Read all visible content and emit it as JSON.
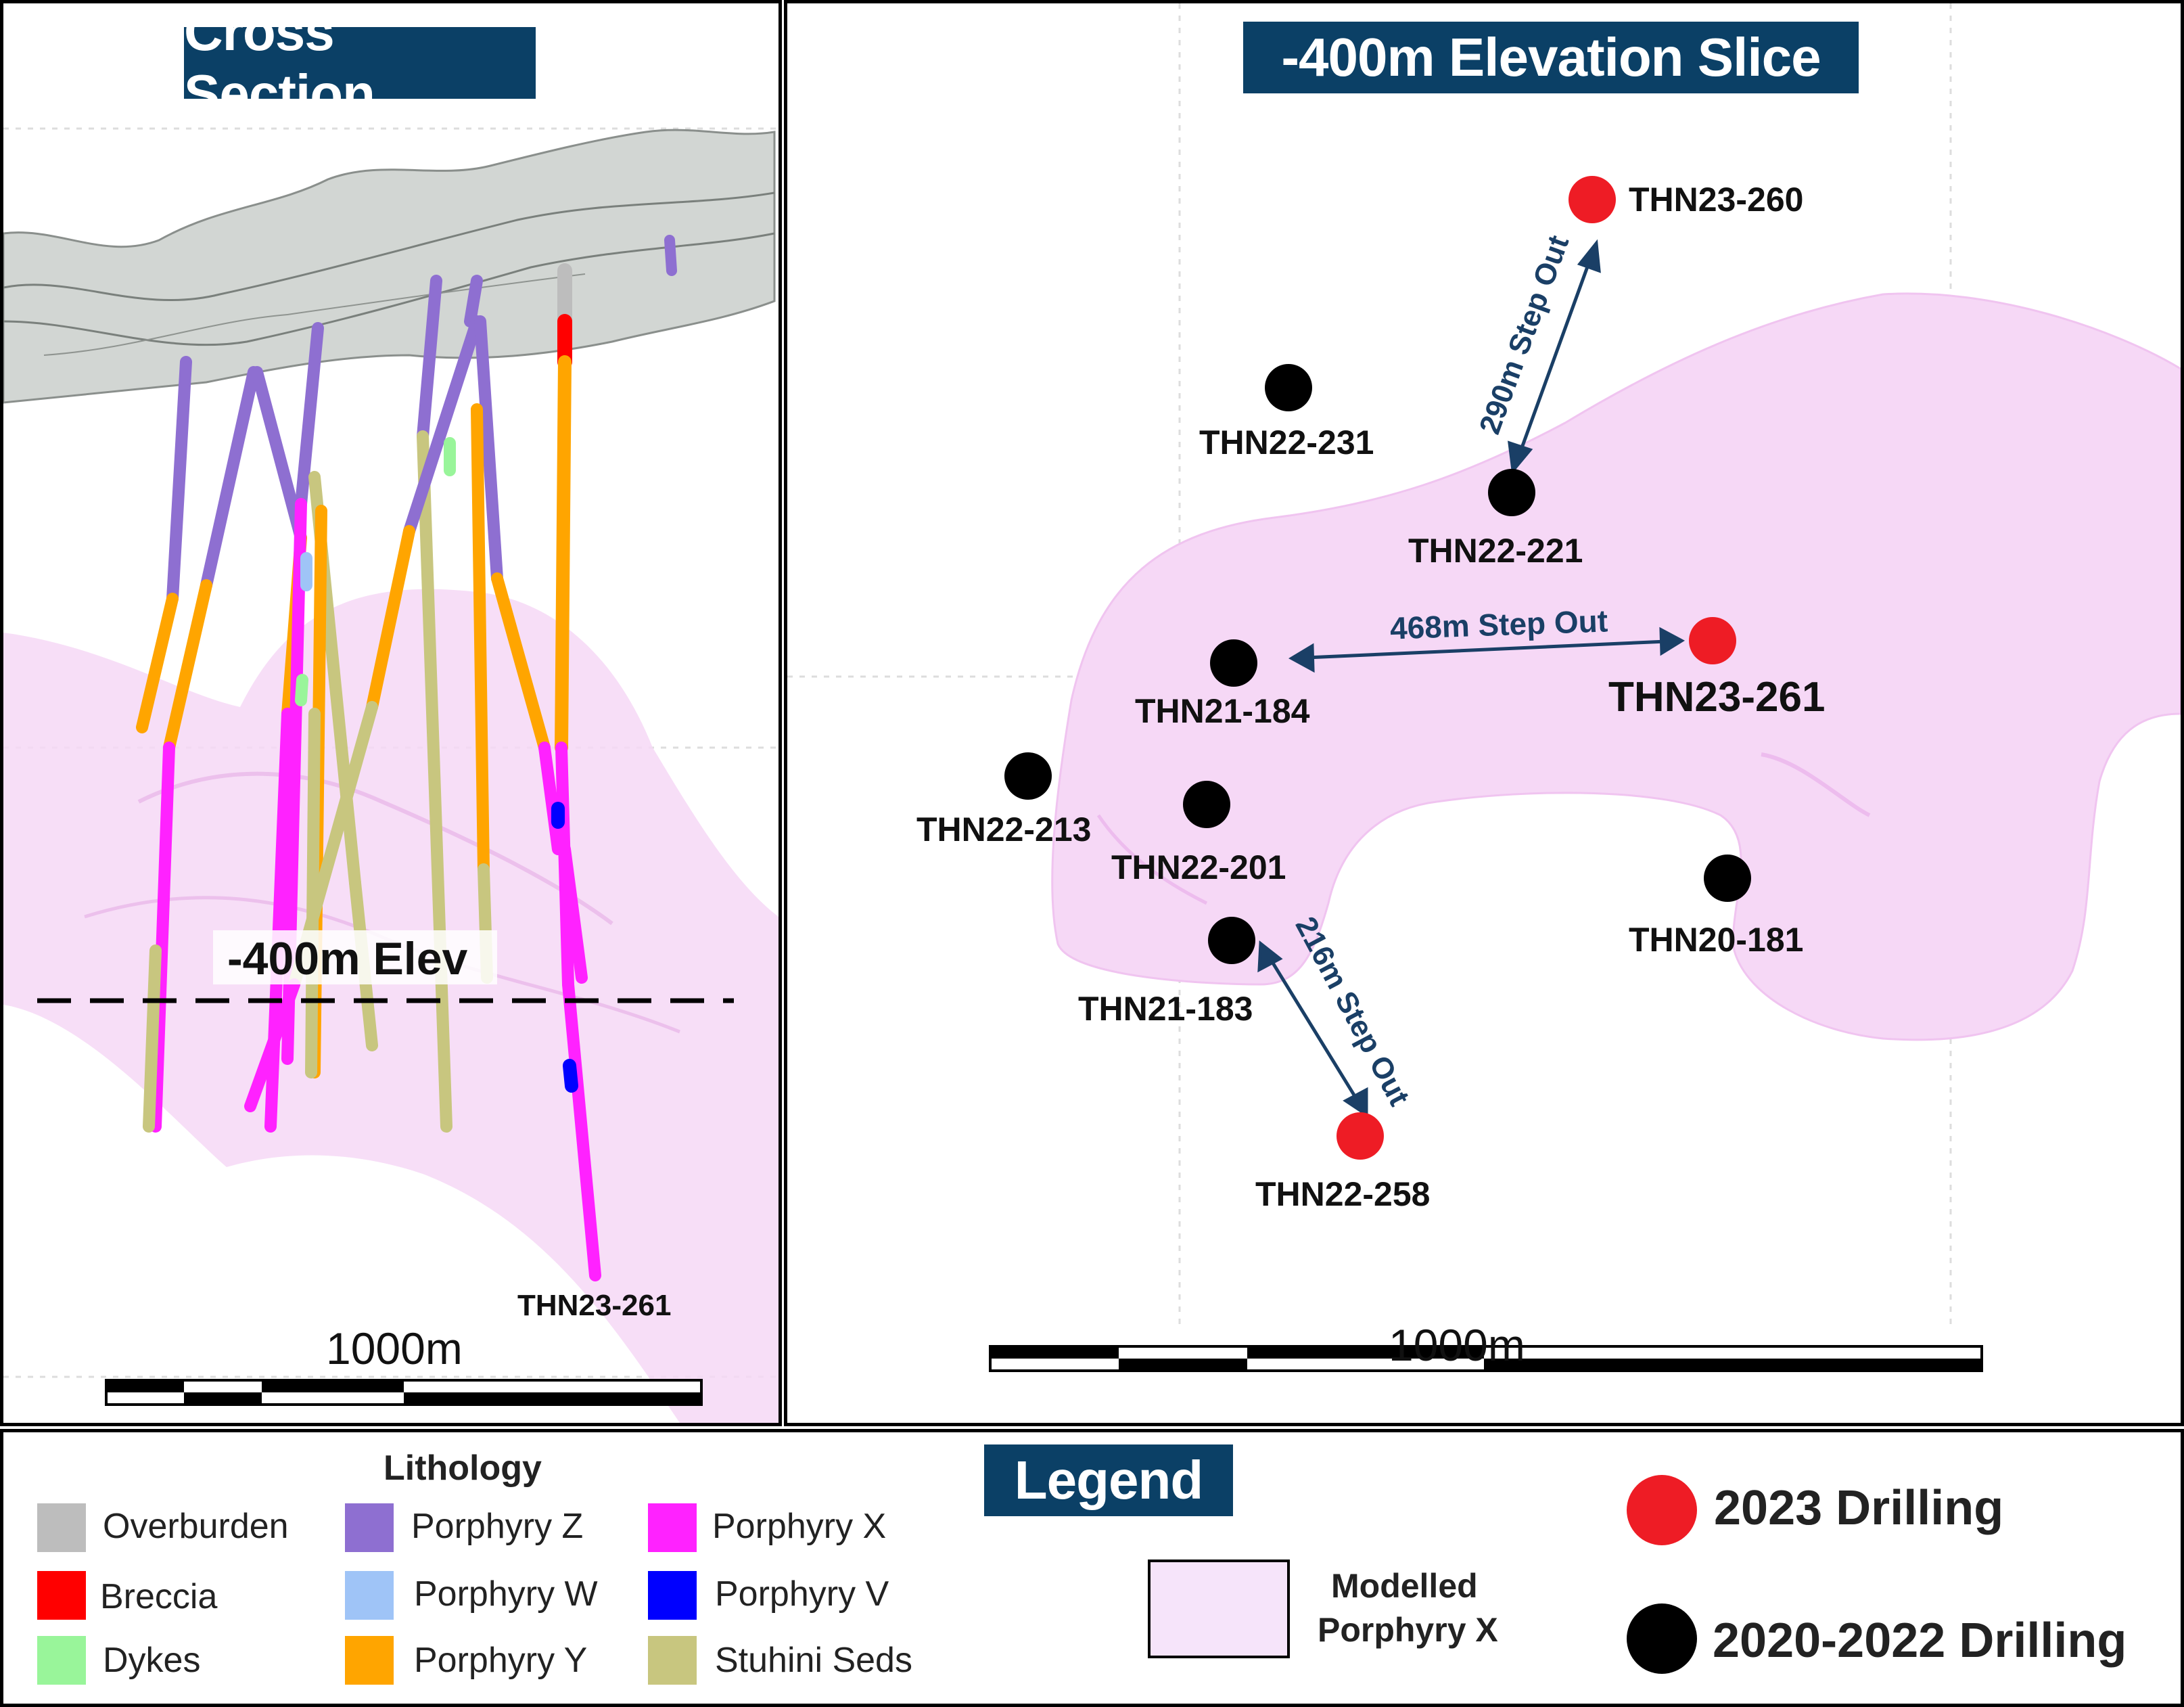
{
  "cross_section": {
    "title": "Cross Section",
    "elevation_label": "-400m Elev",
    "hole_label": "THN23-261",
    "scale_label": "1000m"
  },
  "elevation_slice": {
    "title": "-400m Elevation Slice",
    "scale_label": "1000m",
    "holes": [
      {
        "id": "THN23-260",
        "year_group": "2023"
      },
      {
        "id": "THN22-231",
        "year_group": "2020-2022"
      },
      {
        "id": "THN22-221",
        "year_group": "2020-2022"
      },
      {
        "id": "THN21-184",
        "year_group": "2020-2022"
      },
      {
        "id": "THN23-261",
        "year_group": "2023"
      },
      {
        "id": "THN22-213",
        "year_group": "2020-2022"
      },
      {
        "id": "THN22-201",
        "year_group": "2020-2022"
      },
      {
        "id": "THN20-181",
        "year_group": "2020-2022"
      },
      {
        "id": "THN21-183",
        "year_group": "2020-2022"
      },
      {
        "id": "THN22-258",
        "year_group": "2023"
      }
    ],
    "step_outs": [
      {
        "label": "290m Step Out",
        "from": "THN22-221",
        "to": "THN23-260"
      },
      {
        "label": "468m Step Out",
        "from": "THN21-184",
        "to": "THN23-261"
      },
      {
        "label": "216m Step Out",
        "from": "THN21-183",
        "to": "THN22-258"
      }
    ]
  },
  "legend": {
    "title": "Legend",
    "lithology_title": "Lithology",
    "lithology": [
      {
        "name": "Overburden",
        "color": "#bdbdbd"
      },
      {
        "name": "Breccia",
        "color": "#ff0000"
      },
      {
        "name": "Dykes",
        "color": "#99f59a"
      },
      {
        "name": "Porphyry Z",
        "color": "#8e6fd1"
      },
      {
        "name": "Porphyry W",
        "color": "#9fc4f7"
      },
      {
        "name": "Porphyry Y",
        "color": "#ffa500"
      },
      {
        "name": "Porphyry X",
        "color": "#ff22ff"
      },
      {
        "name": "Porphyry V",
        "color": "#0000ff"
      },
      {
        "name": "Stuhini Seds",
        "color": "#c8c67f"
      }
    ],
    "modelled_label_1": "Modelled",
    "modelled_label_2": "Porphyry X",
    "drilling": [
      {
        "label": "2023 Drilling",
        "color": "#ee1c25"
      },
      {
        "label": "2020-2022 Drilling",
        "color": "#000000"
      }
    ]
  },
  "colors": {
    "banner": "#0b4066",
    "arrow": "#1a3f66",
    "porphyry_x_model": "#f6d8f6"
  }
}
